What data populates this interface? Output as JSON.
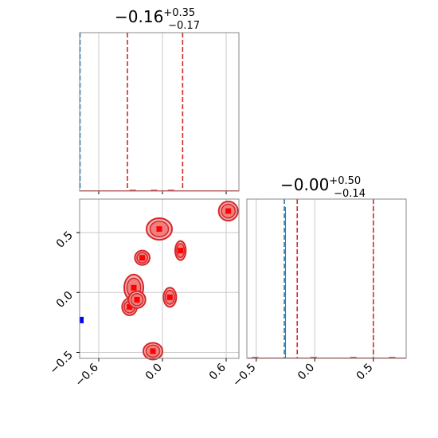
{
  "colors": {
    "quantile": "#d62728",
    "truth": "#1f77b4",
    "contour_fill": "#f08080",
    "contour_line": "#d62728",
    "sample": "#0000ff",
    "grid": "#c8c8c8"
  },
  "chart_data": [
    {
      "type": "histogram",
      "panel": "top-left",
      "title_main": "−0.16",
      "title_sup": "+0.35",
      "title_sub": "−0.17",
      "xlim": [
        -0.78,
        0.72
      ],
      "xticks": [
        -0.6,
        0.0,
        0.6
      ],
      "grid": true,
      "quantile_lines": [
        -0.33,
        0.19
      ],
      "truth_line": -0.78,
      "small_bins": [
        {
          "x": -0.28,
          "h": 0.01
        },
        {
          "x": -0.08,
          "h": 0.01
        },
        {
          "x": 0.08,
          "h": 0.01
        }
      ]
    },
    {
      "type": "contour",
      "panel": "bottom-left",
      "xlim": [
        -0.78,
        0.72
      ],
      "ylim": [
        -0.55,
        0.78
      ],
      "xticks": [
        -0.6,
        0.0,
        0.6
      ],
      "yticks": [
        -0.5,
        0.0,
        0.5
      ],
      "xtick_labels": [
        "−0.6",
        "0.0",
        "0.6"
      ],
      "ytick_labels": [
        "−0.5",
        "0.0",
        "0.5"
      ],
      "grid": true,
      "blobs": [
        {
          "x": 0.62,
          "y": 0.68,
          "rx": 0.09,
          "ry": 0.08
        },
        {
          "x": -0.03,
          "y": 0.53,
          "rx": 0.12,
          "ry": 0.09
        },
        {
          "x": 0.17,
          "y": 0.35,
          "rx": 0.05,
          "ry": 0.08
        },
        {
          "x": -0.19,
          "y": 0.29,
          "rx": 0.07,
          "ry": 0.06
        },
        {
          "x": -0.27,
          "y": 0.04,
          "rx": 0.09,
          "ry": 0.11
        },
        {
          "x": -0.31,
          "y": -0.12,
          "rx": 0.07,
          "ry": 0.07
        },
        {
          "x": -0.24,
          "y": -0.06,
          "rx": 0.08,
          "ry": 0.07
        },
        {
          "x": 0.07,
          "y": -0.04,
          "rx": 0.06,
          "ry": 0.08
        },
        {
          "x": -0.09,
          "y": -0.49,
          "rx": 0.09,
          "ry": 0.07
        }
      ],
      "sample_point": {
        "x": -0.78,
        "y": -0.23
      }
    },
    {
      "type": "histogram",
      "panel": "bottom-right",
      "title_main": "−0.00",
      "title_sup": "+0.50",
      "title_sub": "−0.14",
      "xlim": [
        -0.58,
        0.78
      ],
      "xticks": [
        -0.5,
        0.0,
        0.5
      ],
      "xtick_labels": [
        "−0.5",
        "0.0",
        "0.5"
      ],
      "grid": true,
      "quantile_lines": [
        -0.15,
        0.5
      ],
      "truth_line": -0.26,
      "small_bins": [
        {
          "x": -0.51,
          "h": 0.01
        },
        {
          "x": -0.01,
          "h": 0.01
        },
        {
          "x": 0.33,
          "h": 0.01
        },
        {
          "x": 0.66,
          "h": 0.01
        }
      ]
    }
  ]
}
